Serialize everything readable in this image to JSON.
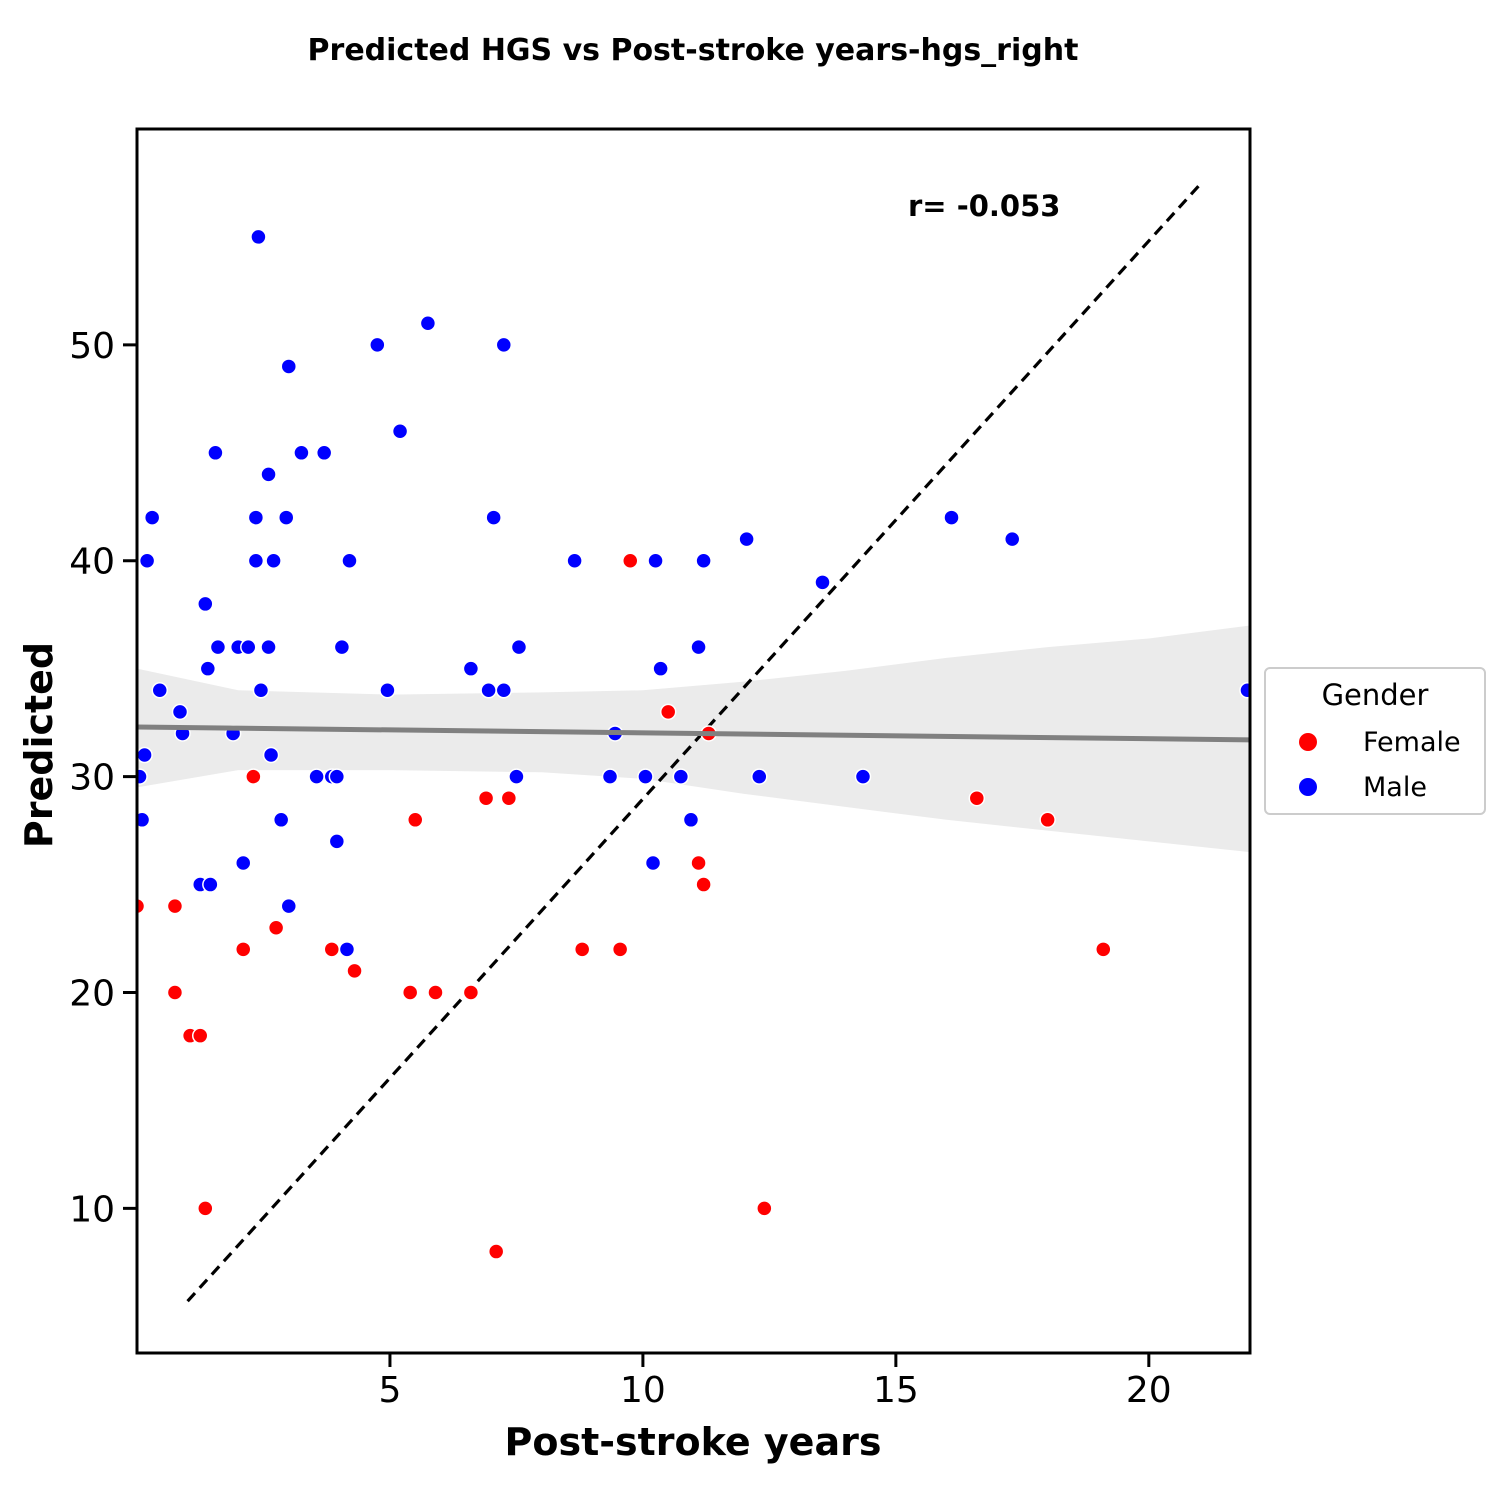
{
  "chart_data": {
    "type": "scatter",
    "title": "Predicted HGS vs Post-stroke years-hgs_right",
    "xlabel": "Post-stroke years",
    "ylabel": "Predicted",
    "xlim": [
      0,
      22
    ],
    "ylim": [
      3.3,
      60
    ],
    "x_ticks": [
      5,
      10,
      15,
      20
    ],
    "y_ticks": [
      10,
      20,
      30,
      40,
      50
    ],
    "grid": false,
    "annotation": "r= -0.053",
    "identity_line": {
      "x": [
        1,
        21
      ],
      "y": [
        5.7,
        57.4
      ],
      "style": "dashed",
      "color": "#000000"
    },
    "regression": {
      "x": [
        0,
        22
      ],
      "y": [
        32.3,
        31.7
      ],
      "color": "#808080",
      "ci_band": {
        "x": [
          0,
          2,
          5,
          8,
          10,
          12,
          14,
          16,
          18,
          20,
          22
        ],
        "upper": [
          35.0,
          34.0,
          33.8,
          33.9,
          34.0,
          34.4,
          34.9,
          35.5,
          36.0,
          36.4,
          37.0
        ],
        "lower": [
          29.5,
          30.3,
          30.3,
          30.2,
          29.9,
          29.2,
          28.6,
          28.0,
          27.5,
          27.0,
          26.5
        ]
      },
      "band_color": "#ebebeb"
    },
    "legend": {
      "title": "Gender",
      "placement": "right"
    },
    "series": [
      {
        "name": "Female",
        "color": "#ff0000",
        "points": [
          [
            0,
            24
          ],
          [
            0.75,
            24
          ],
          [
            0.75,
            20
          ],
          [
            1.05,
            18
          ],
          [
            1.25,
            18
          ],
          [
            1.35,
            10
          ],
          [
            2.1,
            22
          ],
          [
            2.3,
            30
          ],
          [
            2.75,
            23
          ],
          [
            3.85,
            22
          ],
          [
            4.3,
            21
          ],
          [
            5.4,
            20
          ],
          [
            5.5,
            28
          ],
          [
            5.9,
            20
          ],
          [
            6.6,
            20
          ],
          [
            6.9,
            29
          ],
          [
            7.1,
            8
          ],
          [
            7.35,
            29
          ],
          [
            8.8,
            22
          ],
          [
            9.55,
            22
          ],
          [
            9.75,
            40
          ],
          [
            10.5,
            33
          ],
          [
            11.1,
            26
          ],
          [
            11.2,
            25
          ],
          [
            11.3,
            32
          ],
          [
            12.4,
            10
          ],
          [
            16.6,
            29
          ],
          [
            18,
            28
          ],
          [
            19.1,
            22
          ]
        ]
      },
      {
        "name": "Male",
        "color": "#0000ff",
        "points": [
          [
            0.05,
            30
          ],
          [
            0.1,
            28
          ],
          [
            0.15,
            31
          ],
          [
            0.2,
            40
          ],
          [
            0.3,
            42
          ],
          [
            0.45,
            34
          ],
          [
            0.85,
            33
          ],
          [
            0.9,
            32
          ],
          [
            1.25,
            25
          ],
          [
            1.35,
            38
          ],
          [
            1.4,
            35
          ],
          [
            1.45,
            25
          ],
          [
            1.55,
            45
          ],
          [
            1.6,
            36
          ],
          [
            1.9,
            32
          ],
          [
            2.0,
            36
          ],
          [
            2.1,
            26
          ],
          [
            2.2,
            36
          ],
          [
            2.35,
            40
          ],
          [
            2.35,
            42
          ],
          [
            2.4,
            55
          ],
          [
            2.45,
            34
          ],
          [
            2.6,
            36
          ],
          [
            2.6,
            44
          ],
          [
            2.65,
            31
          ],
          [
            2.7,
            40
          ],
          [
            2.85,
            28
          ],
          [
            2.95,
            42
          ],
          [
            3.0,
            49
          ],
          [
            3.0,
            24
          ],
          [
            3.25,
            45
          ],
          [
            3.55,
            30
          ],
          [
            3.7,
            45
          ],
          [
            3.85,
            30
          ],
          [
            3.95,
            30
          ],
          [
            3.95,
            27
          ],
          [
            4.05,
            36
          ],
          [
            4.15,
            22
          ],
          [
            4.2,
            40
          ],
          [
            4.75,
            50
          ],
          [
            4.95,
            34
          ],
          [
            5.2,
            46
          ],
          [
            5.75,
            51
          ],
          [
            6.6,
            35
          ],
          [
            6.95,
            34
          ],
          [
            7.05,
            42
          ],
          [
            7.25,
            34
          ],
          [
            7.25,
            50
          ],
          [
            7.5,
            30
          ],
          [
            7.55,
            36
          ],
          [
            8.65,
            40
          ],
          [
            9.35,
            30
          ],
          [
            9.45,
            32
          ],
          [
            10.05,
            30
          ],
          [
            10.2,
            26
          ],
          [
            10.25,
            40
          ],
          [
            10.35,
            35
          ],
          [
            10.75,
            30
          ],
          [
            10.95,
            28
          ],
          [
            11.1,
            36
          ],
          [
            11.2,
            40
          ],
          [
            12.05,
            41
          ],
          [
            12.3,
            30
          ],
          [
            13.55,
            39
          ],
          [
            14.35,
            30
          ],
          [
            16.1,
            42
          ],
          [
            17.3,
            41
          ],
          [
            21.95,
            34
          ]
        ]
      }
    ]
  }
}
